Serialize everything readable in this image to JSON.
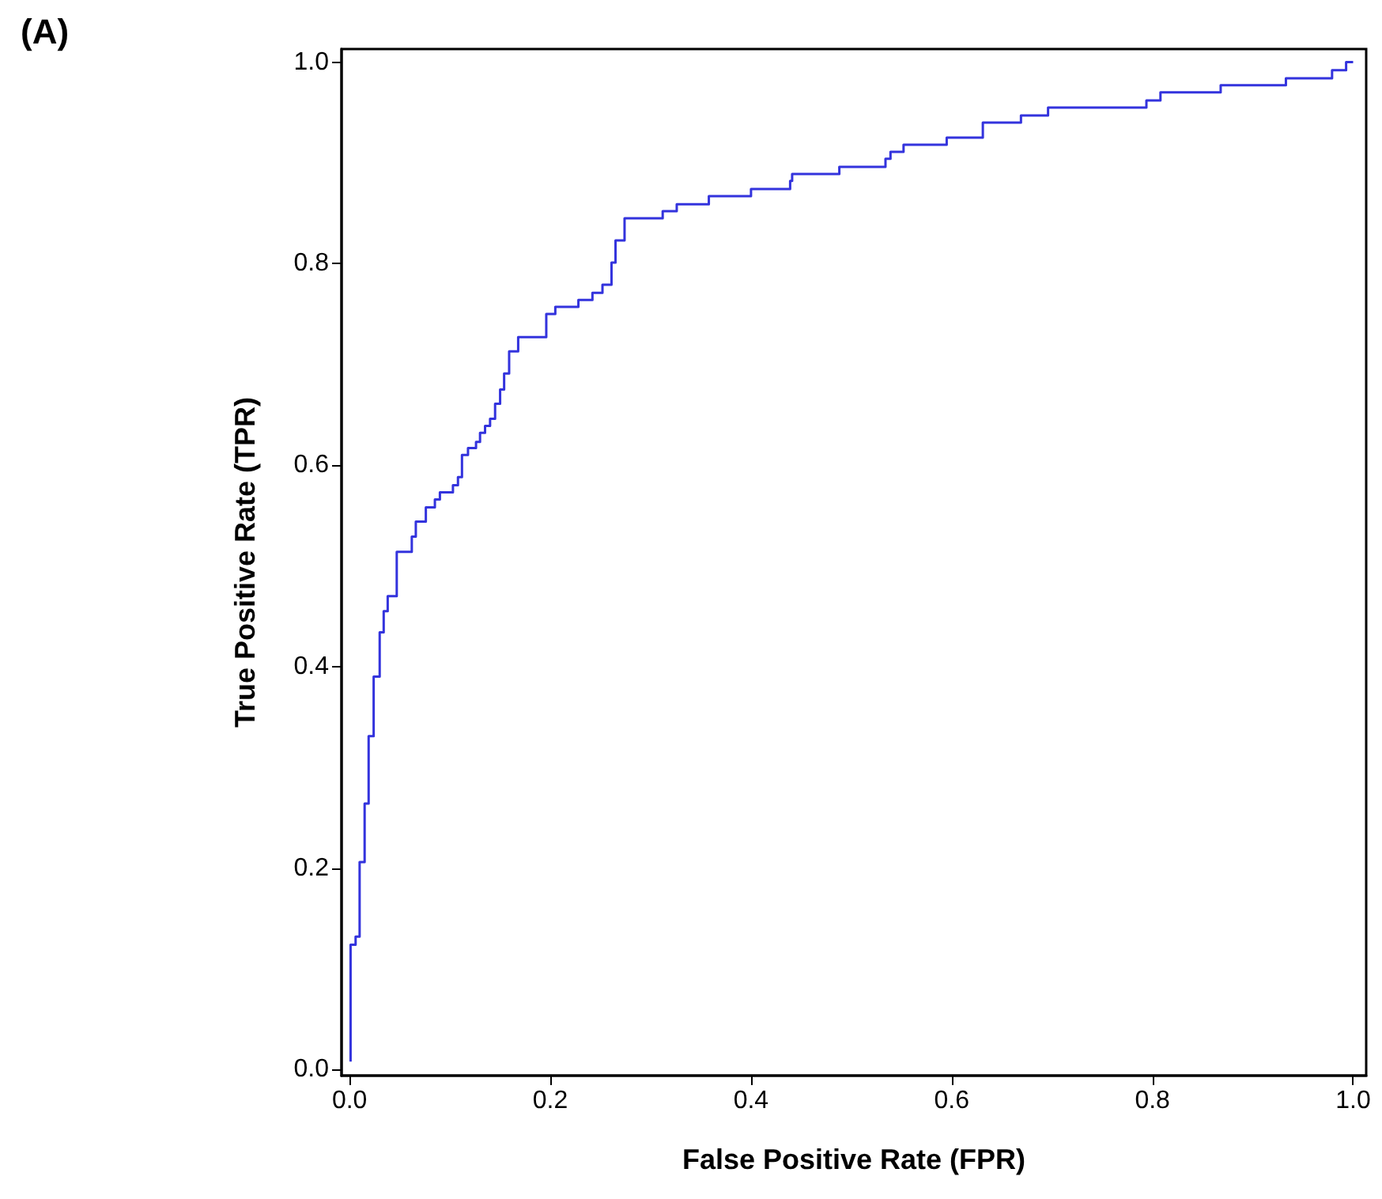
{
  "chart_data": {
    "type": "step",
    "title": "(A)",
    "xlabel": "False Positive Rate (FPR)",
    "ylabel": "True Positive Rate (TPR)",
    "xlim": [
      -0.008,
      1.013
    ],
    "ylim": [
      -0.006,
      1.013
    ],
    "xticks": [
      {
        "value": 0,
        "label": "0.0"
      },
      {
        "value": 0.2,
        "label": "0.2"
      },
      {
        "value": 0.4,
        "label": "0.4"
      },
      {
        "value": 0.6,
        "label": "0.6"
      },
      {
        "value": 0.8,
        "label": "0.8"
      },
      {
        "value": 1,
        "label": "1.0"
      }
    ],
    "yticks": [
      {
        "value": 0,
        "label": "0.0"
      },
      {
        "value": 0.2,
        "label": "0.2"
      },
      {
        "value": 0.4,
        "label": "0.4"
      },
      {
        "value": 0.6,
        "label": "0.6"
      },
      {
        "value": 0.8,
        "label": "0.8"
      },
      {
        "value": 1,
        "label": "1.0"
      }
    ],
    "grid": false,
    "marker": "none",
    "line_style": "solid",
    "series": [
      {
        "color": "#3333dd",
        "x": [
          0.001,
          0.001,
          0.006,
          0.01,
          0.015,
          0.019,
          0.024,
          0.03,
          0.034,
          0.038,
          0.047,
          0.062,
          0.066,
          0.076,
          0.085,
          0.09,
          0.103,
          0.108,
          0.112,
          0.118,
          0.126,
          0.13,
          0.135,
          0.14,
          0.145,
          0.15,
          0.154,
          0.159,
          0.168,
          0.196,
          0.205,
          0.228,
          0.242,
          0.252,
          0.261,
          0.265,
          0.274,
          0.312,
          0.326,
          0.358,
          0.4,
          0.439,
          0.441,
          0.488,
          0.534,
          0.539,
          0.552,
          0.595,
          0.631,
          0.669,
          0.696,
          0.794,
          0.808,
          0.868,
          0.933,
          0.979,
          0.993,
          1.0
        ],
        "values": [
          0.008,
          0.124,
          0.132,
          0.206,
          0.264,
          0.331,
          0.39,
          0.434,
          0.455,
          0.47,
          0.514,
          0.529,
          0.544,
          0.558,
          0.566,
          0.573,
          0.58,
          0.588,
          0.61,
          0.617,
          0.623,
          0.632,
          0.639,
          0.646,
          0.661,
          0.675,
          0.691,
          0.713,
          0.727,
          0.75,
          0.757,
          0.764,
          0.771,
          0.779,
          0.801,
          0.823,
          0.845,
          0.852,
          0.859,
          0.867,
          0.874,
          0.882,
          0.889,
          0.896,
          0.904,
          0.911,
          0.918,
          0.925,
          0.94,
          0.947,
          0.955,
          0.962,
          0.97,
          0.977,
          0.984,
          0.992,
          1.0,
          1.0
        ]
      }
    ]
  }
}
